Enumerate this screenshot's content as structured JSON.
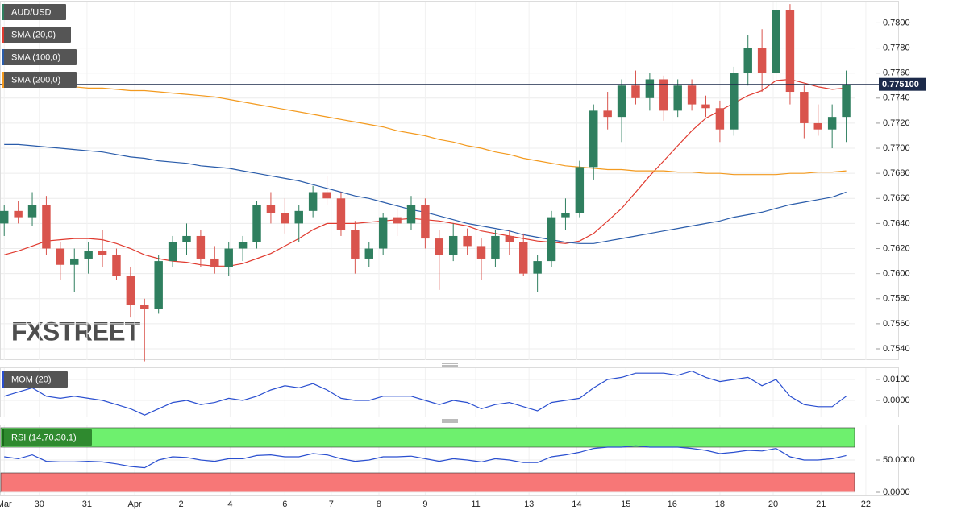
{
  "chart_data": [
    {
      "type": "candlestick",
      "title": "AUD/USD",
      "watermark": "FXSTREET",
      "colors": {
        "up": "#2f7f5f",
        "down": "#d9544d"
      },
      "open": [
        0.764,
        0.765,
        0.7645,
        0.7655,
        0.762,
        0.7607,
        0.7612,
        0.7618,
        0.7615,
        0.7598,
        0.7575,
        0.7572,
        0.761,
        0.7625,
        0.763,
        0.7612,
        0.7605,
        0.762,
        0.7625,
        0.7655,
        0.7648,
        0.764,
        0.765,
        0.7665,
        0.766,
        0.7635,
        0.7612,
        0.762,
        0.7645,
        0.764,
        0.7655,
        0.7628,
        0.7615,
        0.763,
        0.7622,
        0.7612,
        0.763,
        0.7625,
        0.76,
        0.761,
        0.7645,
        0.7648,
        0.7685,
        0.773,
        0.7725,
        0.775,
        0.774,
        0.7755,
        0.773,
        0.775,
        0.7735,
        0.7732,
        0.7715,
        0.776,
        0.778,
        0.776,
        0.781,
        0.7745,
        0.772,
        0.7715,
        0.7725
      ],
      "high": [
        0.7655,
        0.7658,
        0.7665,
        0.7662,
        0.7625,
        0.762,
        0.7625,
        0.7635,
        0.762,
        0.7605,
        0.758,
        0.7615,
        0.763,
        0.764,
        0.7635,
        0.7622,
        0.7625,
        0.763,
        0.7658,
        0.7665,
        0.766,
        0.7655,
        0.767,
        0.7678,
        0.7665,
        0.7642,
        0.7625,
        0.7648,
        0.7652,
        0.7662,
        0.766,
        0.7635,
        0.764,
        0.7636,
        0.7628,
        0.7635,
        0.7635,
        0.7632,
        0.7615,
        0.765,
        0.766,
        0.769,
        0.7735,
        0.7745,
        0.7755,
        0.7762,
        0.776,
        0.7758,
        0.7755,
        0.7755,
        0.7742,
        0.7738,
        0.7765,
        0.779,
        0.7795,
        0.7817,
        0.7815,
        0.775,
        0.7735,
        0.7735,
        0.7762
      ],
      "low": [
        0.763,
        0.764,
        0.7638,
        0.7615,
        0.7595,
        0.7585,
        0.76,
        0.7605,
        0.7595,
        0.7565,
        0.753,
        0.7568,
        0.7605,
        0.7615,
        0.7605,
        0.76,
        0.7598,
        0.761,
        0.762,
        0.764,
        0.7632,
        0.7625,
        0.7645,
        0.7655,
        0.763,
        0.76,
        0.7605,
        0.7615,
        0.763,
        0.7635,
        0.762,
        0.7587,
        0.761,
        0.7615,
        0.7595,
        0.7605,
        0.7615,
        0.7598,
        0.7585,
        0.7605,
        0.7635,
        0.7645,
        0.7675,
        0.7715,
        0.7705,
        0.7735,
        0.773,
        0.7722,
        0.7725,
        0.773,
        0.7725,
        0.7705,
        0.771,
        0.775,
        0.7745,
        0.7755,
        0.7735,
        0.7708,
        0.771,
        0.77,
        0.7705
      ],
      "close": [
        0.765,
        0.7645,
        0.7655,
        0.762,
        0.7607,
        0.7612,
        0.7618,
        0.7615,
        0.7598,
        0.7575,
        0.7572,
        0.761,
        0.7625,
        0.763,
        0.7612,
        0.7605,
        0.762,
        0.7625,
        0.7655,
        0.7648,
        0.764,
        0.765,
        0.7665,
        0.766,
        0.7635,
        0.7612,
        0.762,
        0.7645,
        0.764,
        0.7655,
        0.7628,
        0.7615,
        0.763,
        0.7622,
        0.7612,
        0.763,
        0.7625,
        0.76,
        0.761,
        0.7645,
        0.7648,
        0.7685,
        0.773,
        0.7725,
        0.775,
        0.774,
        0.7755,
        0.773,
        0.775,
        0.7735,
        0.7732,
        0.7715,
        0.776,
        0.778,
        0.776,
        0.781,
        0.7745,
        0.772,
        0.7715,
        0.7725,
        0.7751
      ],
      "series": [
        {
          "name": "SMA (20,0)",
          "color": "#e03a2f",
          "values": [
            0.7615,
            0.7618,
            0.7622,
            0.7626,
            0.7627,
            0.7628,
            0.7628,
            0.7627,
            0.7624,
            0.762,
            0.7615,
            0.7612,
            0.761,
            0.7609,
            0.7607,
            0.7606,
            0.7606,
            0.7608,
            0.7612,
            0.7616,
            0.7622,
            0.7628,
            0.7635,
            0.764,
            0.764,
            0.764,
            0.7641,
            0.7642,
            0.7643,
            0.7644,
            0.7643,
            0.7642,
            0.764,
            0.7638,
            0.7634,
            0.7632,
            0.763,
            0.7628,
            0.7626,
            0.7625,
            0.7624,
            0.7626,
            0.7632,
            0.7642,
            0.7652,
            0.7665,
            0.7678,
            0.769,
            0.7702,
            0.7714,
            0.7724,
            0.773,
            0.7736,
            0.7742,
            0.7746,
            0.7754,
            0.7755,
            0.7752,
            0.7749,
            0.7747,
            0.7748
          ]
        },
        {
          "name": "SMA (100,0)",
          "color": "#2a5caa",
          "values": [
            0.7703,
            0.7703,
            0.7702,
            0.7701,
            0.77,
            0.7699,
            0.7698,
            0.7697,
            0.7695,
            0.7693,
            0.7692,
            0.769,
            0.7689,
            0.7688,
            0.7686,
            0.7685,
            0.7684,
            0.7682,
            0.768,
            0.7678,
            0.7676,
            0.7674,
            0.7671,
            0.7668,
            0.7665,
            0.7662,
            0.766,
            0.7657,
            0.7654,
            0.7651,
            0.7649,
            0.7646,
            0.7643,
            0.764,
            0.7638,
            0.7636,
            0.7634,
            0.7631,
            0.7629,
            0.7627,
            0.7625,
            0.7624,
            0.7624,
            0.7626,
            0.7628,
            0.763,
            0.7632,
            0.7634,
            0.7636,
            0.7638,
            0.764,
            0.7642,
            0.7645,
            0.7647,
            0.7649,
            0.7652,
            0.7655,
            0.7657,
            0.7659,
            0.7661,
            0.7665
          ]
        },
        {
          "name": "SMA (200,0)",
          "color": "#f39a1f",
          "values": [
            0.7752,
            0.7752,
            0.7751,
            0.775,
            0.775,
            0.7749,
            0.7748,
            0.7748,
            0.7747,
            0.7746,
            0.7746,
            0.7745,
            0.7744,
            0.7743,
            0.7742,
            0.7741,
            0.7739,
            0.7737,
            0.7735,
            0.7733,
            0.7731,
            0.7729,
            0.7727,
            0.7725,
            0.7723,
            0.7721,
            0.7719,
            0.7717,
            0.7714,
            0.7712,
            0.771,
            0.7707,
            0.7705,
            0.7702,
            0.77,
            0.7697,
            0.7695,
            0.7692,
            0.769,
            0.7688,
            0.7686,
            0.7685,
            0.7684,
            0.7683,
            0.7683,
            0.7682,
            0.7682,
            0.7682,
            0.7681,
            0.7681,
            0.768,
            0.768,
            0.7679,
            0.7679,
            0.7679,
            0.7679,
            0.768,
            0.768,
            0.7681,
            0.7681,
            0.7682
          ]
        }
      ],
      "last_price": {
        "value": 0.7751,
        "label": "0.775100"
      },
      "ylim": [
        0.7531,
        0.7817
      ],
      "yticks": [
        {
          "value": 0.754,
          "label": "0.7540"
        },
        {
          "value": 0.756,
          "label": "0.7560"
        },
        {
          "value": 0.758,
          "label": "0.7580"
        },
        {
          "value": 0.76,
          "label": "0.7600"
        },
        {
          "value": 0.762,
          "label": "0.7620"
        },
        {
          "value": 0.764,
          "label": "0.7640"
        },
        {
          "value": 0.766,
          "label": "0.7660"
        },
        {
          "value": 0.768,
          "label": "0.7680"
        },
        {
          "value": 0.77,
          "label": "0.7700"
        },
        {
          "value": 0.772,
          "label": "0.7720"
        },
        {
          "value": 0.774,
          "label": "0.7740"
        },
        {
          "value": 0.776,
          "label": "0.7760"
        },
        {
          "value": 0.778,
          "label": "0.7780"
        },
        {
          "value": 0.78,
          "label": "0.7800"
        }
      ],
      "xlim": [
        -0.3,
        60.6
      ],
      "xticks": [
        {
          "value": 0,
          "label": "Mar"
        },
        {
          "value": 2.5,
          "label": "30"
        },
        {
          "value": 5.9,
          "label": "31"
        },
        {
          "value": 9.3,
          "label": "Apr"
        },
        {
          "value": 12.6,
          "label": "2"
        },
        {
          "value": 16.1,
          "label": "4"
        },
        {
          "value": 20,
          "label": "6"
        },
        {
          "value": 23.3,
          "label": "7"
        },
        {
          "value": 26.7,
          "label": "8"
        },
        {
          "value": 30,
          "label": "9"
        },
        {
          "value": 33.6,
          "label": "11"
        },
        {
          "value": 37.4,
          "label": "13"
        },
        {
          "value": 40.8,
          "label": "14"
        },
        {
          "value": 44.3,
          "label": "15"
        },
        {
          "value": 47.6,
          "label": "16"
        },
        {
          "value": 51,
          "label": "18"
        },
        {
          "value": 54.8,
          "label": "20"
        },
        {
          "value": 58.2,
          "label": "21"
        },
        {
          "value": 61.4,
          "label": "22"
        }
      ],
      "grid": true
    },
    {
      "type": "line",
      "title": "MOM (20)",
      "color": "#2a4fd0",
      "values": [
        0.002,
        0.004,
        0.006,
        0.002,
        0.001,
        0.002,
        0.001,
        0.0,
        -0.002,
        -0.004,
        -0.007,
        -0.004,
        -0.001,
        0.0,
        -0.002,
        -0.001,
        0.001,
        0.0,
        0.002,
        0.005,
        0.007,
        0.006,
        0.008,
        0.005,
        0.001,
        0.0,
        0.0,
        0.002,
        0.002,
        0.002,
        0.0,
        -0.002,
        0.0,
        -0.001,
        -0.004,
        -0.002,
        -0.001,
        -0.003,
        -0.005,
        -0.001,
        0.0,
        0.001,
        0.006,
        0.01,
        0.011,
        0.013,
        0.013,
        0.013,
        0.012,
        0.014,
        0.011,
        0.009,
        0.01,
        0.011,
        0.007,
        0.01,
        0.002,
        -0.002,
        -0.003,
        -0.003,
        0.002
      ],
      "ylim": [
        -0.0077,
        0.0154
      ],
      "yticks": [
        {
          "value": 0.01,
          "label": "0.0100"
        },
        {
          "value": 0,
          "label": "0.0000"
        }
      ],
      "grid": true
    },
    {
      "type": "line",
      "title": "RSI (14,70,30,1)",
      "color": "#2a4fd0",
      "values": [
        55,
        52,
        58,
        48,
        47,
        47,
        48,
        47,
        44,
        40,
        38,
        50,
        55,
        54,
        50,
        48,
        52,
        52,
        57,
        58,
        55,
        55,
        60,
        58,
        52,
        48,
        50,
        55,
        55,
        56,
        52,
        48,
        52,
        50,
        47,
        52,
        50,
        46,
        46,
        55,
        58,
        62,
        68,
        70,
        70,
        72,
        70,
        70,
        70,
        68,
        65,
        60,
        62,
        65,
        64,
        68,
        55,
        50,
        50,
        52,
        57
      ],
      "overbought": 70,
      "oversold": 30,
      "band_colors": {
        "overbought": "#6ef06e",
        "oversold": "#f77777"
      },
      "ylim": [
        -5,
        103.75
      ],
      "yticks": [
        {
          "value": 50,
          "label": "50.0000"
        },
        {
          "value": 0,
          "label": "0.0000"
        }
      ],
      "grid": true
    }
  ]
}
